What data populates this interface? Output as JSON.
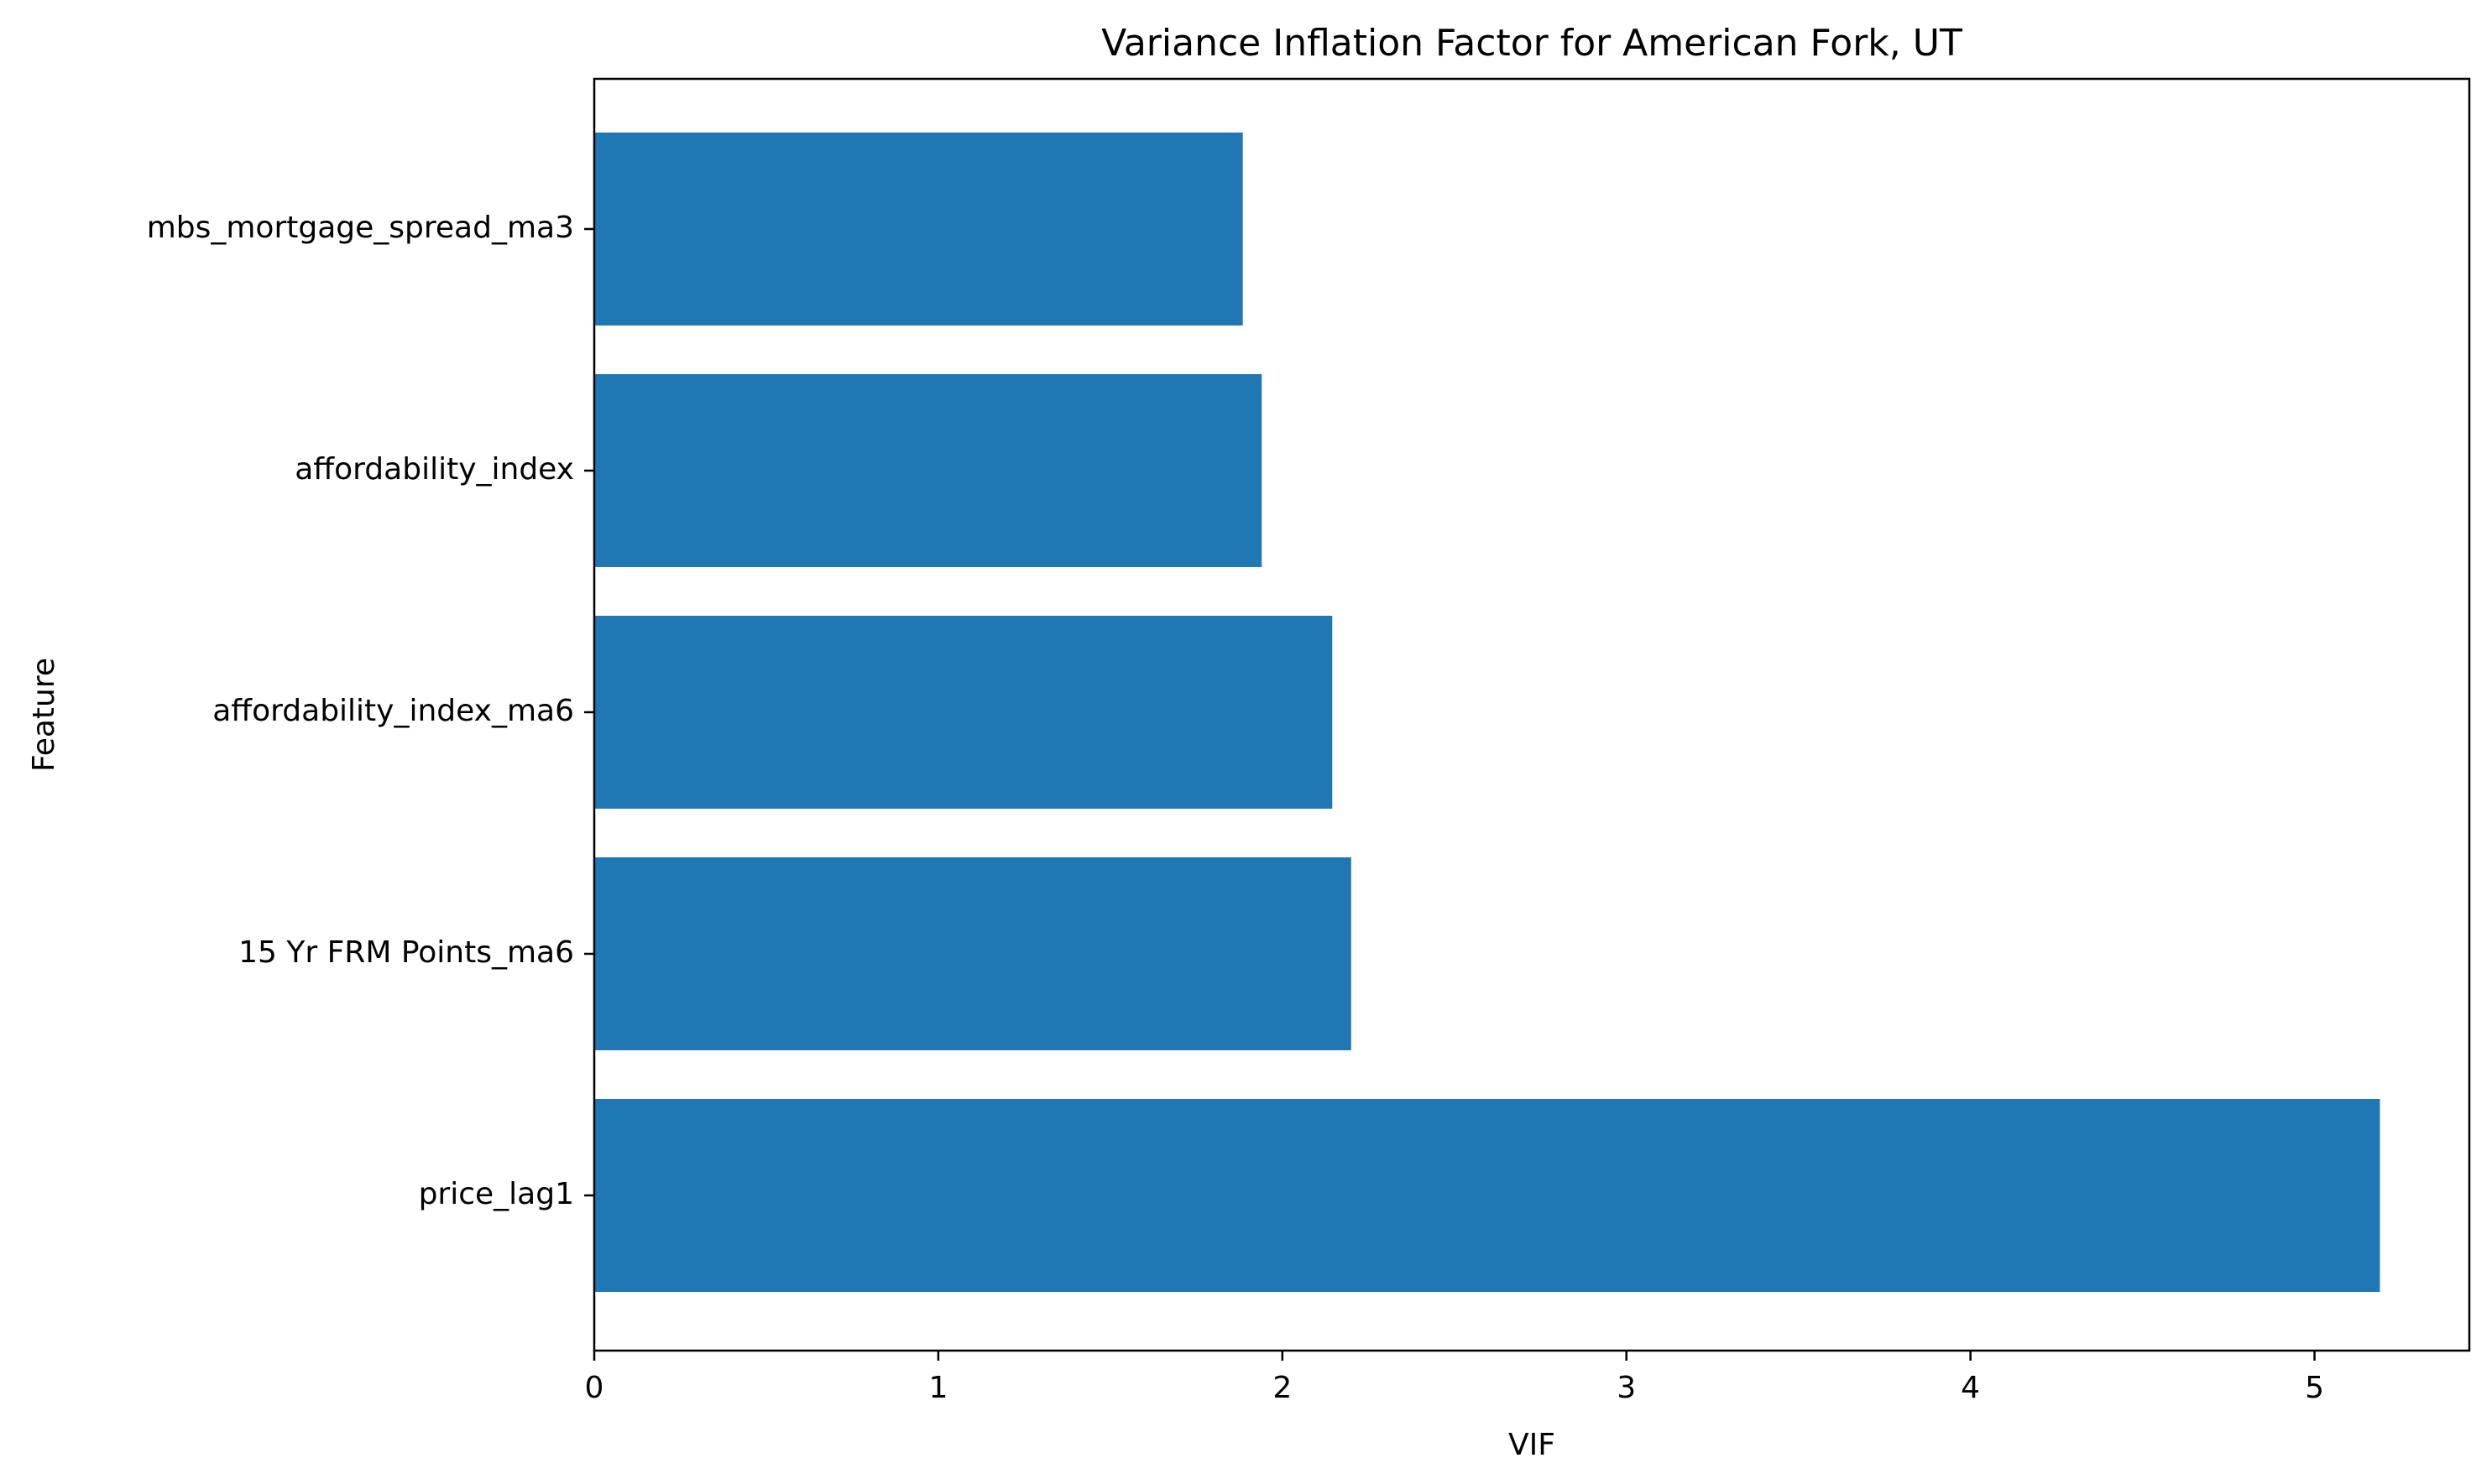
{
  "chart_data": {
    "type": "bar",
    "orientation": "horizontal",
    "title": "Variance Inflation Factor for American Fork, UT",
    "xlabel": "VIF",
    "ylabel": "Feature",
    "categories": [
      "price_lag1",
      "15 Yr FRM Points_ma6",
      "affordability_index_ma6",
      "affordability_index",
      "mbs_mortgage_spread_ma3"
    ],
    "values": [
      5.19,
      2.2,
      2.145,
      1.94,
      1.885
    ],
    "xlim": [
      0,
      5.45
    ],
    "xticks": [
      0,
      1,
      2,
      3,
      4,
      5
    ],
    "xtick_labels": [
      "0",
      "1",
      "2",
      "3",
      "4",
      "5"
    ],
    "grid": false,
    "bar_color": "#1f77b4"
  }
}
